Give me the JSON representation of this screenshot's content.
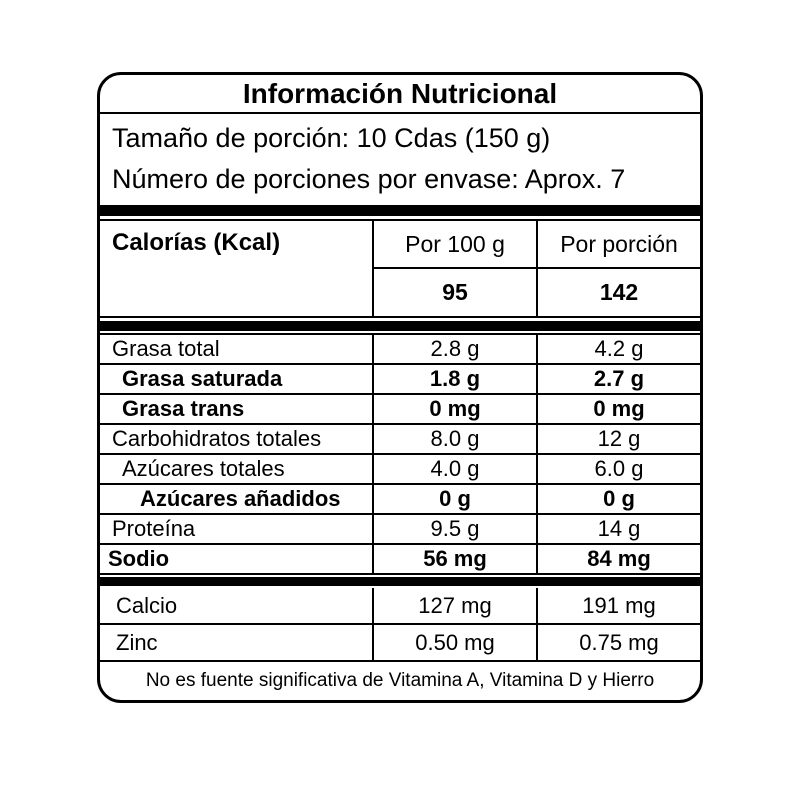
{
  "label": {
    "title": "Información Nutricional",
    "serving": {
      "size_line": "Tamaño de porción: 10 Cdas (150 g)",
      "count_line": "Número de porciones por envase: Aprox. 7"
    },
    "columns": {
      "per_100g_header": "Por 100 g",
      "per_portion_header": "Por porción"
    },
    "calories": {
      "label": "Calorías (Kcal)",
      "per_100g": "95",
      "per_portion": "142"
    },
    "nutrients": [
      {
        "label": "Grasa total",
        "per_100g": "2.8 g",
        "per_portion": "4.2 g"
      },
      {
        "label": "Grasa saturada",
        "per_100g": "1.8 g",
        "per_portion": "2.7 g"
      },
      {
        "label": "Grasa trans",
        "per_100g": "0 mg",
        "per_portion": "0 mg"
      },
      {
        "label": "Carbohidratos totales",
        "per_100g": "8.0 g",
        "per_portion": "12 g"
      },
      {
        "label": "Azúcares totales",
        "per_100g": "4.0 g",
        "per_portion": "6.0 g"
      },
      {
        "label": "Azúcares añadidos",
        "per_100g": "0 g",
        "per_portion": "0 g"
      },
      {
        "label": "Proteína",
        "per_100g": "9.5 g",
        "per_portion": "14 g"
      },
      {
        "label": "Sodio",
        "per_100g": "56 mg",
        "per_portion": "84 mg"
      }
    ],
    "minerals": [
      {
        "label": "Calcio",
        "per_100g": "127 mg",
        "per_portion": "191 mg"
      },
      {
        "label": "Zinc",
        "per_100g": "0.50 mg",
        "per_portion": "0.75 mg"
      }
    ],
    "footnote": "No es fuente significativa de Vitamina A, Vitamina D y Hierro",
    "colors": {
      "ink": "#000000",
      "background": "#ffffff"
    }
  }
}
